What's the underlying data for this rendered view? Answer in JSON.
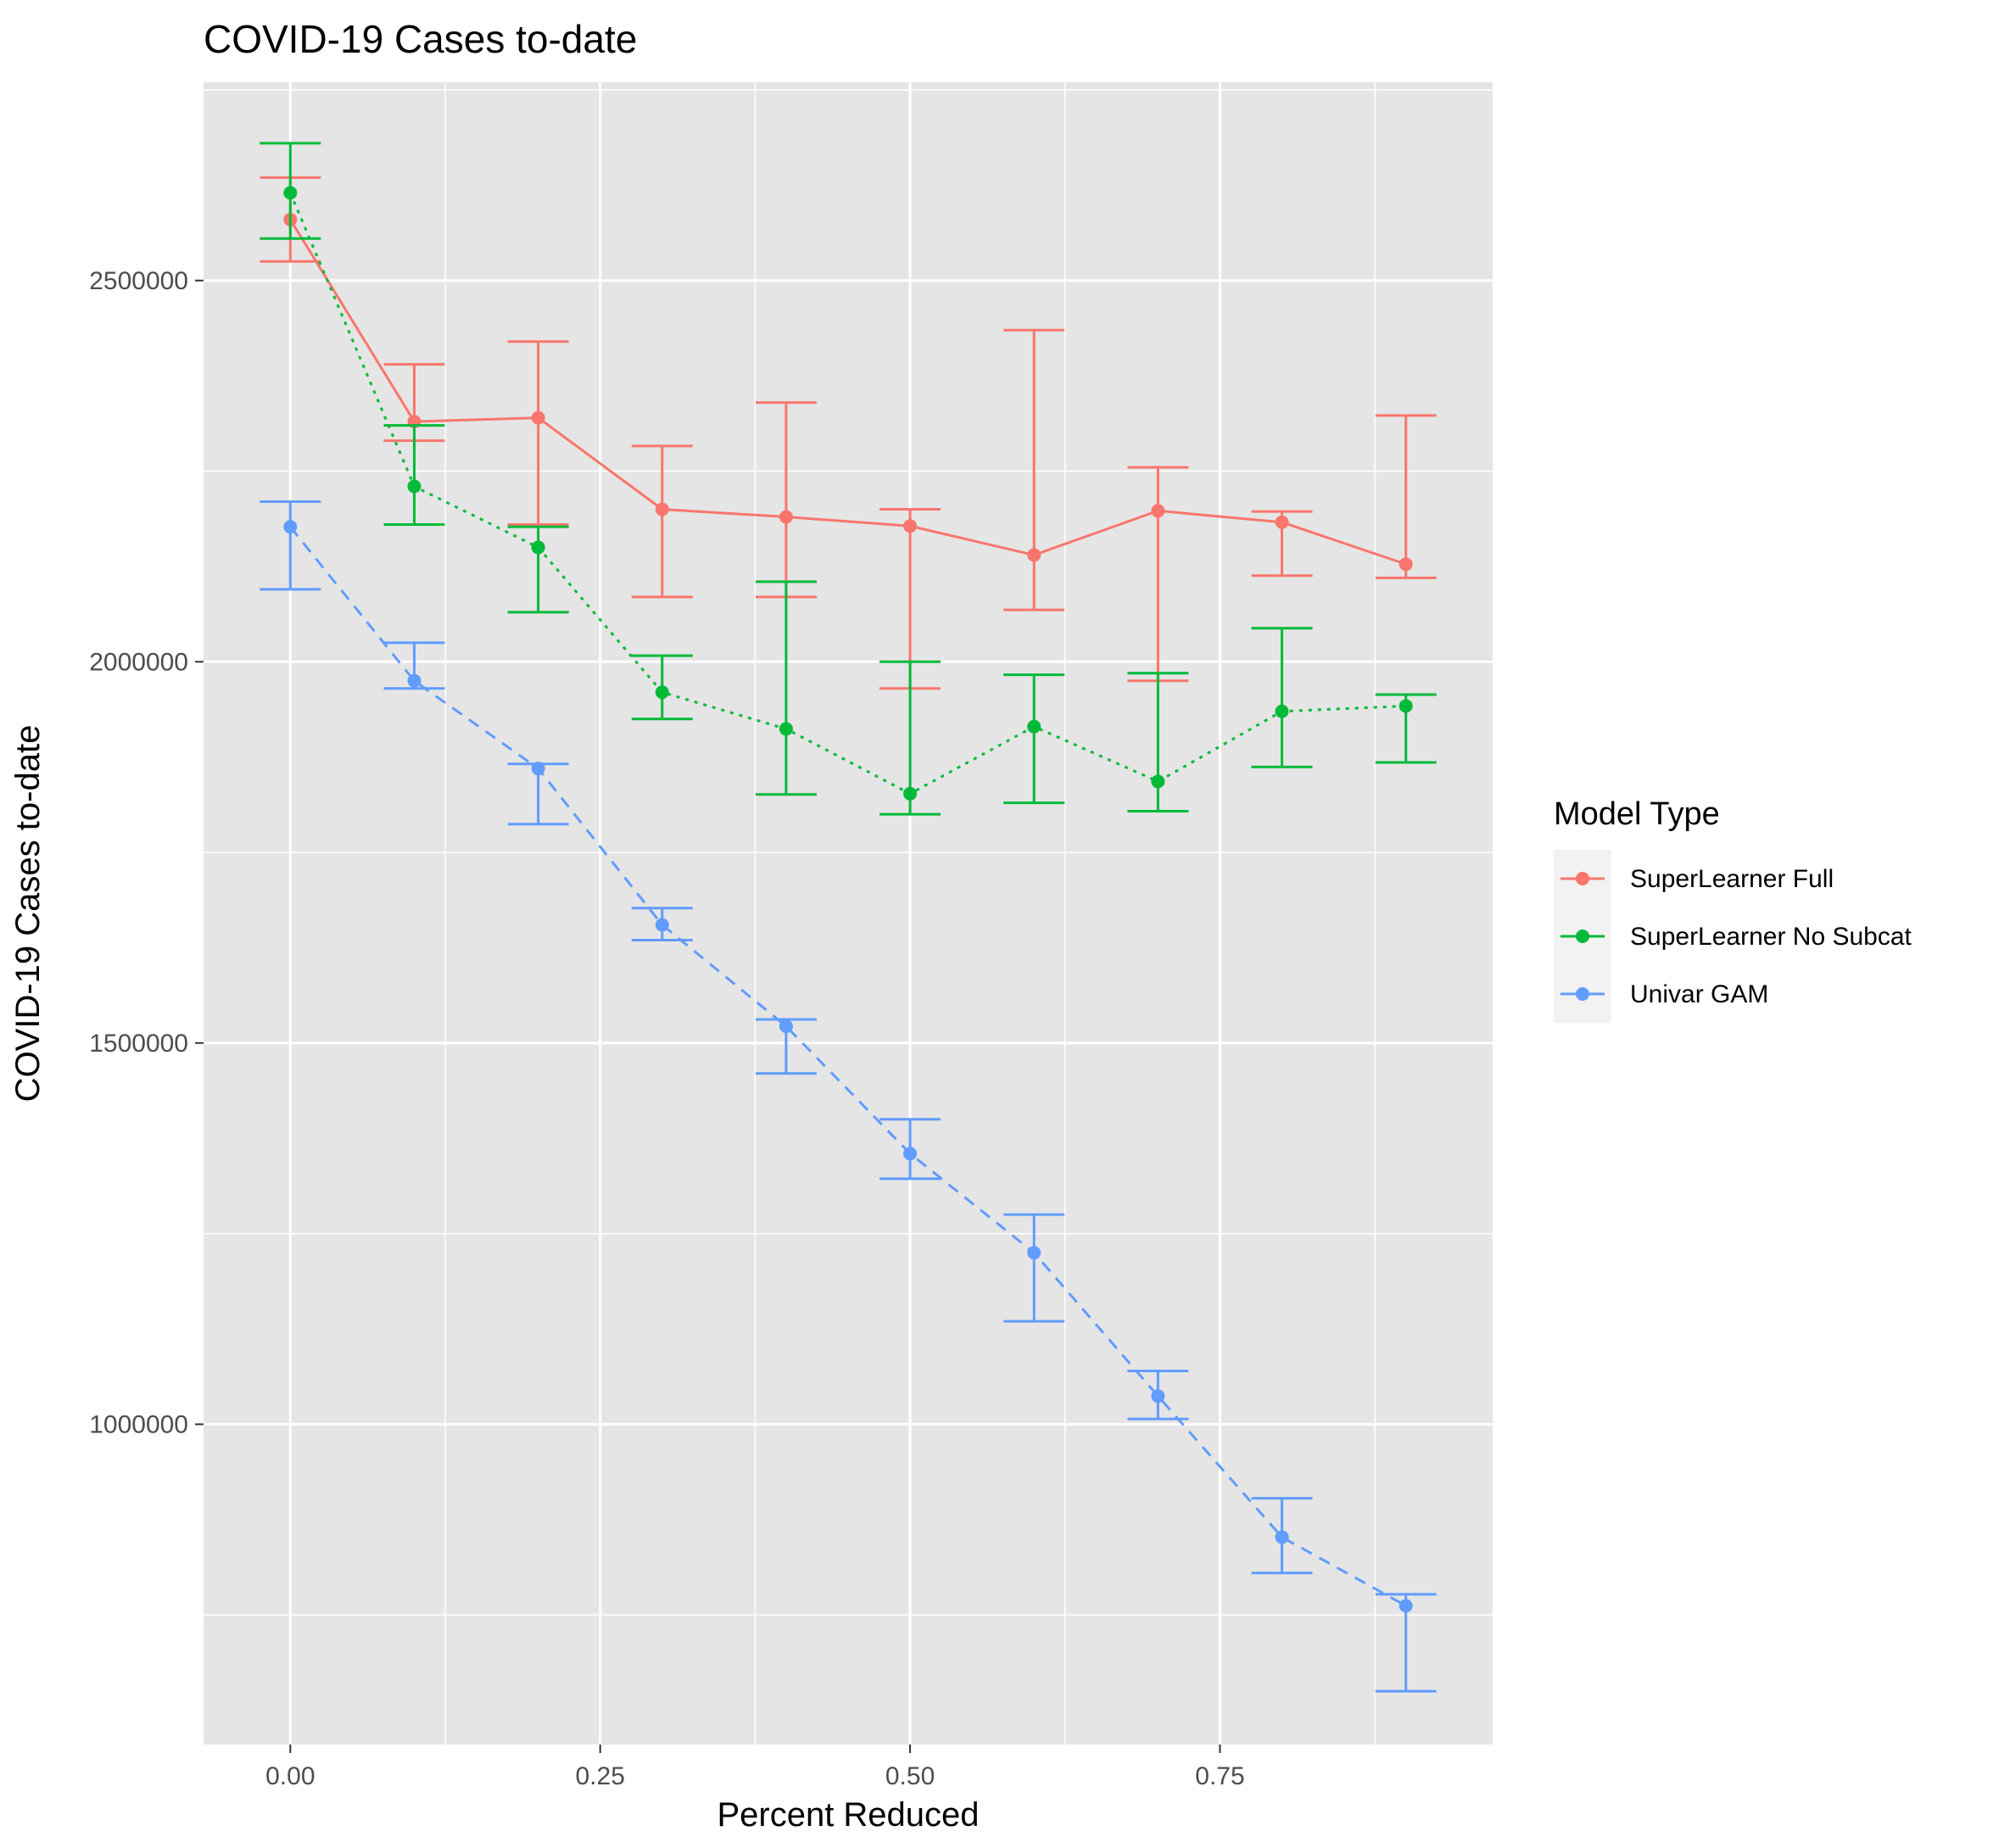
{
  "chart_data": {
    "type": "line",
    "title": "COVID-19 Cases to-date",
    "xlabel": "Percent Reduced",
    "ylabel": "COVID-19 Cases to-date",
    "xlim": [
      -0.07,
      0.97
    ],
    "ylim": [
      580000,
      2760000
    ],
    "x_ticks": [
      0.0,
      0.25,
      0.5,
      0.75
    ],
    "x_tick_labels": [
      "0.00",
      "0.25",
      "0.50",
      "0.75"
    ],
    "y_ticks": [
      1000000,
      1500000,
      2000000,
      2500000
    ],
    "y_tick_labels": [
      "1000000",
      "1500000",
      "2000000",
      "2500000"
    ],
    "grid": true,
    "panel_background": "#e5e5e5",
    "legend": {
      "title": "Model Type",
      "position": "right"
    },
    "series": [
      {
        "name": "SuperLearner Full",
        "color": "#f8766d",
        "linetype": "solid",
        "x": [
          0.0,
          0.1,
          0.2,
          0.3,
          0.4,
          0.5,
          0.6,
          0.7,
          0.8,
          0.9
        ],
        "y": [
          2580000,
          2315000,
          2320000,
          2200000,
          2190000,
          2178000,
          2140000,
          2198000,
          2183000,
          2128000
        ],
        "lower": [
          2525000,
          2290000,
          2180000,
          2085000,
          2085000,
          1965000,
          2068000,
          1975000,
          2113000,
          2110000
        ],
        "upper": [
          2635000,
          2390000,
          2420000,
          2283000,
          2340000,
          2200000,
          2435000,
          2255000,
          2197000,
          2323000
        ]
      },
      {
        "name": "SuperLearner No Subcat",
        "color": "#00ba38",
        "linetype": "dotted",
        "x": [
          0.0,
          0.1,
          0.2,
          0.3,
          0.4,
          0.5,
          0.6,
          0.7,
          0.8,
          0.9
        ],
        "y": [
          2615000,
          2230000,
          2150000,
          1960000,
          1912000,
          1827000,
          1915000,
          1843000,
          1935000,
          1942000
        ],
        "lower": [
          2555000,
          2180000,
          2065000,
          1925000,
          1826000,
          1800000,
          1815000,
          1804000,
          1862000,
          1868000
        ],
        "upper": [
          2680000,
          2310000,
          2177000,
          2008000,
          2105000,
          2000000,
          1983000,
          1985000,
          2044000,
          1957000
        ]
      },
      {
        "name": "Univar GAM",
        "color": "#619cff",
        "linetype": "dashed",
        "x": [
          0.0,
          0.1,
          0.2,
          0.3,
          0.4,
          0.5,
          0.6,
          0.7,
          0.8,
          0.9
        ],
        "y": [
          2177000,
          1975000,
          1860000,
          1655000,
          1522000,
          1355000,
          1225000,
          1037000,
          852000,
          762000
        ],
        "lower": [
          2095000,
          1965000,
          1787000,
          1635000,
          1460000,
          1322000,
          1135000,
          1007000,
          805000,
          650000
        ],
        "upper": [
          2210000,
          2025000,
          1866000,
          1677000,
          1531000,
          1400000,
          1275000,
          1070000,
          903000,
          777000
        ]
      }
    ]
  }
}
